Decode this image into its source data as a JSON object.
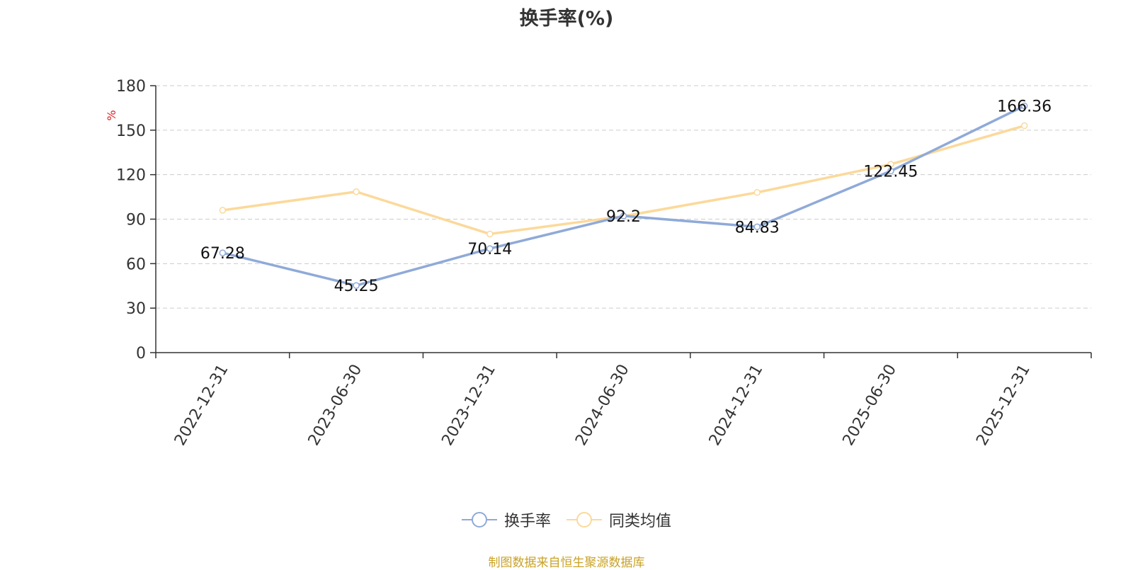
{
  "colors": {
    "series1": "#8faad8",
    "series2": "#fcd99a",
    "axis": "#333333",
    "grid": "#cccccc",
    "unit": "#e01e1e",
    "source": "#c9a227"
  },
  "chart_data": {
    "type": "line",
    "title": "换手率(%)",
    "ylabel": "%",
    "xlabel": "",
    "ylim": [
      0,
      180
    ],
    "yticks": [
      0,
      30,
      60,
      90,
      120,
      150,
      180
    ],
    "grid": true,
    "legend_position": "bottom",
    "categories": [
      "2022-12-31",
      "2023-06-30",
      "2023-12-31",
      "2024-06-30",
      "2024-12-31",
      "2025-06-30",
      "2025-12-31"
    ],
    "series": [
      {
        "name": "换手率",
        "values": [
          67.28,
          45.25,
          70.14,
          92.2,
          84.83,
          122.45,
          166.36
        ],
        "labels": [
          "67.28",
          "45.25",
          "70.14",
          "92.2",
          "84.83",
          "122.45",
          "166.36"
        ]
      },
      {
        "name": "同类均值",
        "values": [
          96,
          108.5,
          80,
          92,
          108,
          127,
          153
        ]
      }
    ]
  },
  "source_text": "制图数据来自恒生聚源数据库"
}
